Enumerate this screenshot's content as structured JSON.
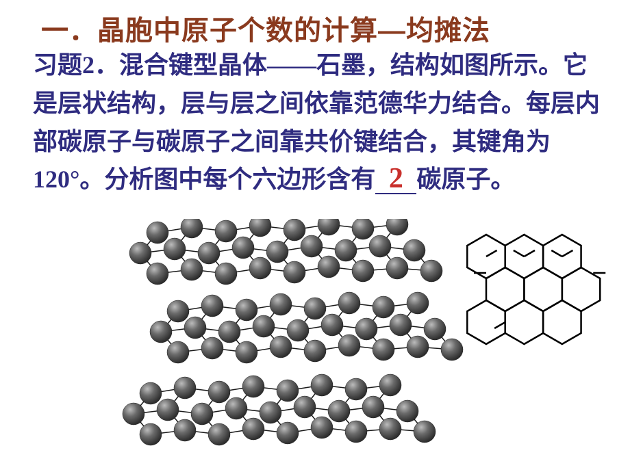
{
  "title": "一．晶胞中原子个数的计算—均摊法",
  "problem": {
    "label": "习题2．",
    "text_before_blank": "混合键型晶体——石墨，结构如图所示。它是层状结构，层与层之间依靠范德华力结合。每层内部碳原子与碳原子之间靠共价键结合，其键角为120°。分析图中每个六边形含有",
    "blank_answer": "2",
    "text_after_blank": "碳原子。"
  },
  "colors": {
    "title": "#8a3a1e",
    "body_text": "#2f2c80",
    "answer": "#c9302c",
    "atom_fill": "#555555",
    "atom_highlight": "#aaaaaa",
    "bond": "#1a1a1a",
    "honeycomb_line": "#000000",
    "background": "#ffffff"
  },
  "graphite_layers": {
    "type": "diagram",
    "layer_count": 3,
    "layer_positions_y": [
      0,
      115,
      235
    ],
    "layer_x_offsets": [
      0,
      30,
      -10
    ],
    "atom_radius": 16,
    "atoms_per_row_approx": 10,
    "bond_width": 1.5
  },
  "honeycomb": {
    "type": "diagram",
    "rows": 3,
    "cols": 3,
    "hex_radius": 32,
    "line_width": 2.5
  }
}
